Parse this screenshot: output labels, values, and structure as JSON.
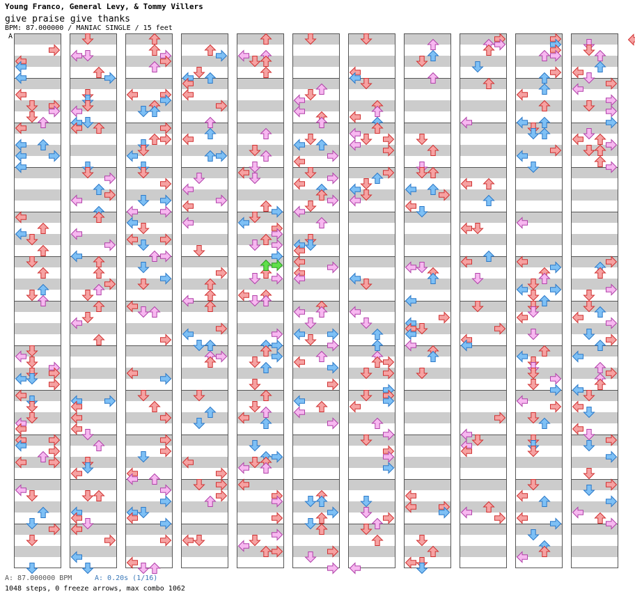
{
  "header": {
    "artist": "Young Franco, General Levy, & Tommy Villers",
    "title": "give praise give thanks",
    "meta": "BPM: 87.000000 / MANIAC SINGLE / 15 feet",
    "marker_a": "A"
  },
  "footer": {
    "bpm": "A: 87.000000 BPM",
    "stop": "A: 0.20s (1/16)",
    "stats": "1048 steps, 0 freeze arrows, max combo 1062"
  },
  "colors": {
    "red": "#f6a2a2",
    "red_stroke": "#d03030",
    "blue": "#7ec0f5",
    "blue_stroke": "#2a78c8",
    "pink": "#f7b8f0",
    "pink_stroke": "#b040a8",
    "green": "#5fe04a",
    "green_stroke": "#2a9a20",
    "stripe": "#cccccc"
  },
  "chart": {
    "columns": 11,
    "measures_per_column": 12,
    "lanes": [
      "left",
      "down",
      "up",
      "right"
    ],
    "notes_seed": 20240
  }
}
